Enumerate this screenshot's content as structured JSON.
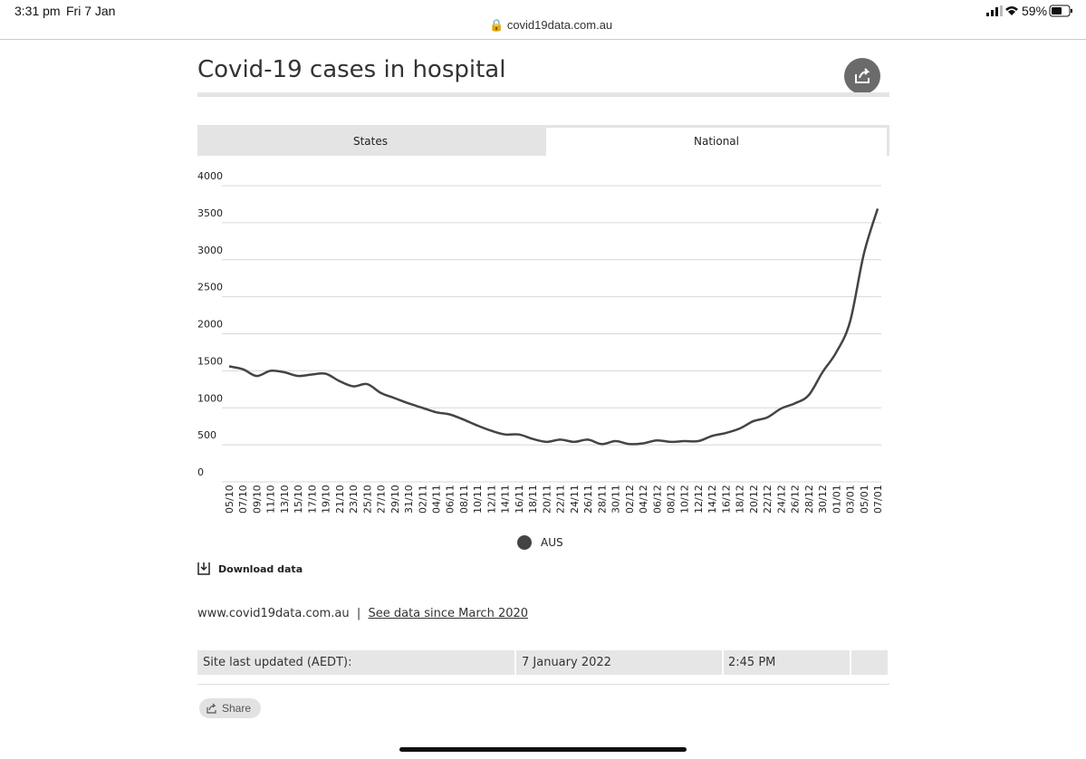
{
  "status_bar": {
    "time": "3:31 pm",
    "date": "Fri 7 Jan",
    "battery": "59%"
  },
  "browser": {
    "url": "covid19data.com.au"
  },
  "header": {
    "title": "Covid-19 cases in hospital"
  },
  "tabs": [
    "States",
    "National"
  ],
  "chart_data": {
    "type": "line",
    "categories": [
      "05/10",
      "07/10",
      "09/10",
      "11/10",
      "13/10",
      "15/10",
      "17/10",
      "19/10",
      "21/10",
      "23/10",
      "25/10",
      "27/10",
      "29/10",
      "31/10",
      "02/11",
      "04/11",
      "06/11",
      "08/11",
      "10/11",
      "12/11",
      "14/11",
      "16/11",
      "18/11",
      "20/11",
      "22/11",
      "24/11",
      "26/11",
      "28/11",
      "30/11",
      "02/12",
      "04/12",
      "06/12",
      "08/12",
      "10/12",
      "12/12",
      "14/12",
      "16/12",
      "18/12",
      "20/12",
      "22/12",
      "24/12",
      "26/12",
      "28/12",
      "30/12",
      "01/01",
      "03/01",
      "05/01",
      "07/01"
    ],
    "series": [
      {
        "name": "AUS",
        "color": "#444444",
        "values": [
          1560,
          1520,
          1430,
          1500,
          1480,
          1430,
          1450,
          1460,
          1360,
          1290,
          1320,
          1200,
          1130,
          1060,
          1000,
          940,
          910,
          840,
          760,
          690,
          640,
          640,
          580,
          540,
          570,
          540,
          570,
          510,
          550,
          510,
          520,
          560,
          540,
          550,
          550,
          620,
          660,
          720,
          820,
          870,
          990,
          1060,
          1170,
          1480,
          1750,
          2165,
          3080,
          3690
        ]
      }
    ],
    "ylim": [
      0,
      4000
    ],
    "yticks": [
      0,
      500,
      1000,
      1500,
      2000,
      2500,
      3000,
      3500,
      4000
    ],
    "grid": true
  },
  "actions": {
    "download": "Download data",
    "share": "Share"
  },
  "footer": {
    "site": "www.covid19data.com.au",
    "separator": "|",
    "link": "See data since March 2020"
  },
  "updated": {
    "label": "Site last updated (AEDT):",
    "date": "7 January 2022",
    "time": "2:45 PM"
  }
}
